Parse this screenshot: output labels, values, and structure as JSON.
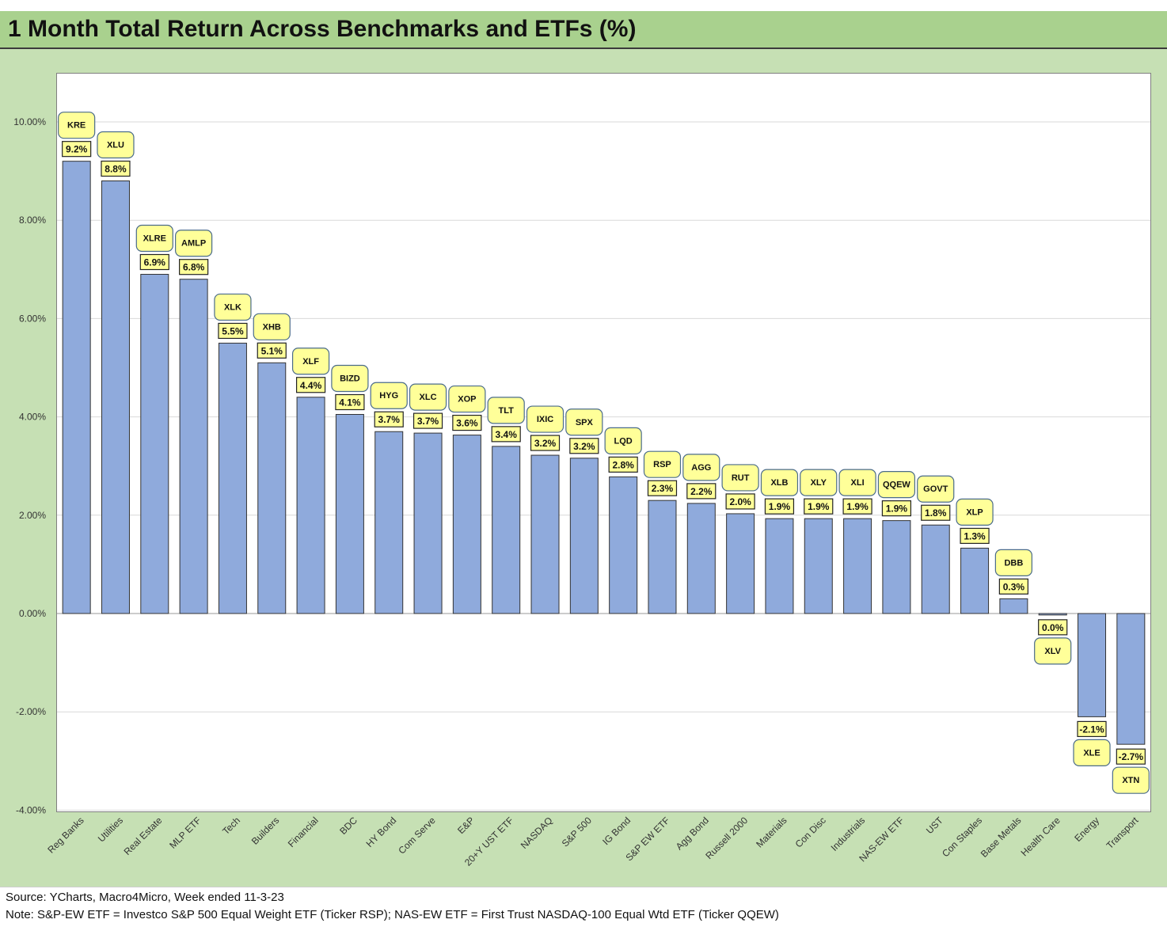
{
  "title": "1 Month Total Return Across Benchmarks and ETFs (%)",
  "notes": {
    "source": "Source: YCharts, Macro4Micro, Week ended 11-3-23",
    "note": "Note: S&P-EW ETF = Investco S&P 500 Equal Weight ETF (Ticker RSP); NAS-EW ETF = First Trust NASDAQ-100 Equal Wtd ETF (Ticker QQEW)"
  },
  "colors": {
    "bar": "#8faadc",
    "callout": "#ffff99",
    "title_band": "#a9d18e",
    "panel": "#c6e0b4"
  },
  "chart_data": {
    "type": "bar",
    "title": "1 Month Total Return Across Benchmarks and ETFs (%)",
    "xlabel": "",
    "ylabel": "",
    "ylim": [
      -4,
      11
    ],
    "yticks": [
      -4,
      -2,
      0,
      2,
      4,
      6,
      8,
      10
    ],
    "ytick_labels": [
      "-4.00%",
      "-2.00%",
      "0.00%",
      "2.00%",
      "4.00%",
      "6.00%",
      "8.00%",
      "10.00%"
    ],
    "grid": true,
    "categories": [
      "Reg Banks",
      "Utilities",
      "Real Estate",
      "MLP ETF",
      "Tech",
      "Builders",
      "Financial",
      "BDC",
      "HY Bond",
      "Com Serve",
      "E&P",
      "20+Y UST ETF",
      "NASDAQ",
      "S&P 500",
      "IG Bond",
      "S&P EW ETF",
      "Agg Bond",
      "Russell 2000",
      "Materials",
      "Con Disc",
      "Industrials",
      "NAS-EW ETF",
      "UST",
      "Con Staples",
      "Base Metals",
      "Health Care",
      "Energy",
      "Transport"
    ],
    "tickers": [
      "KRE",
      "XLU",
      "XLRE",
      "AMLP",
      "XLK",
      "XHB",
      "XLF",
      "BIZD",
      "HYG",
      "XLC",
      "XOP",
      "TLT",
      "IXIC",
      "SPX",
      "LQD",
      "RSP",
      "AGG",
      "RUT",
      "XLB",
      "XLY",
      "XLI",
      "QQEW",
      "GOVT",
      "XLP",
      "DBB",
      "XLV",
      "XLE",
      "XTN"
    ],
    "values": [
      9.2,
      8.8,
      6.9,
      6.8,
      5.5,
      5.1,
      4.4,
      4.05,
      3.7,
      3.67,
      3.63,
      3.4,
      3.22,
      3.16,
      2.78,
      2.3,
      2.24,
      2.03,
      1.93,
      1.93,
      1.93,
      1.89,
      1.8,
      1.33,
      0.3,
      -0.03,
      -2.1,
      -2.66
    ],
    "value_labels": [
      "9.2%",
      "8.8%",
      "6.9%",
      "6.8%",
      "5.5%",
      "5.1%",
      "4.4%",
      "4.1%",
      "3.7%",
      "3.7%",
      "3.6%",
      "3.4%",
      "3.2%",
      "3.2%",
      "2.8%",
      "2.3%",
      "2.2%",
      "2.0%",
      "1.9%",
      "1.9%",
      "1.9%",
      "1.9%",
      "1.8%",
      "1.3%",
      "0.3%",
      "0.0%",
      "-2.1%",
      "-2.7%"
    ]
  }
}
